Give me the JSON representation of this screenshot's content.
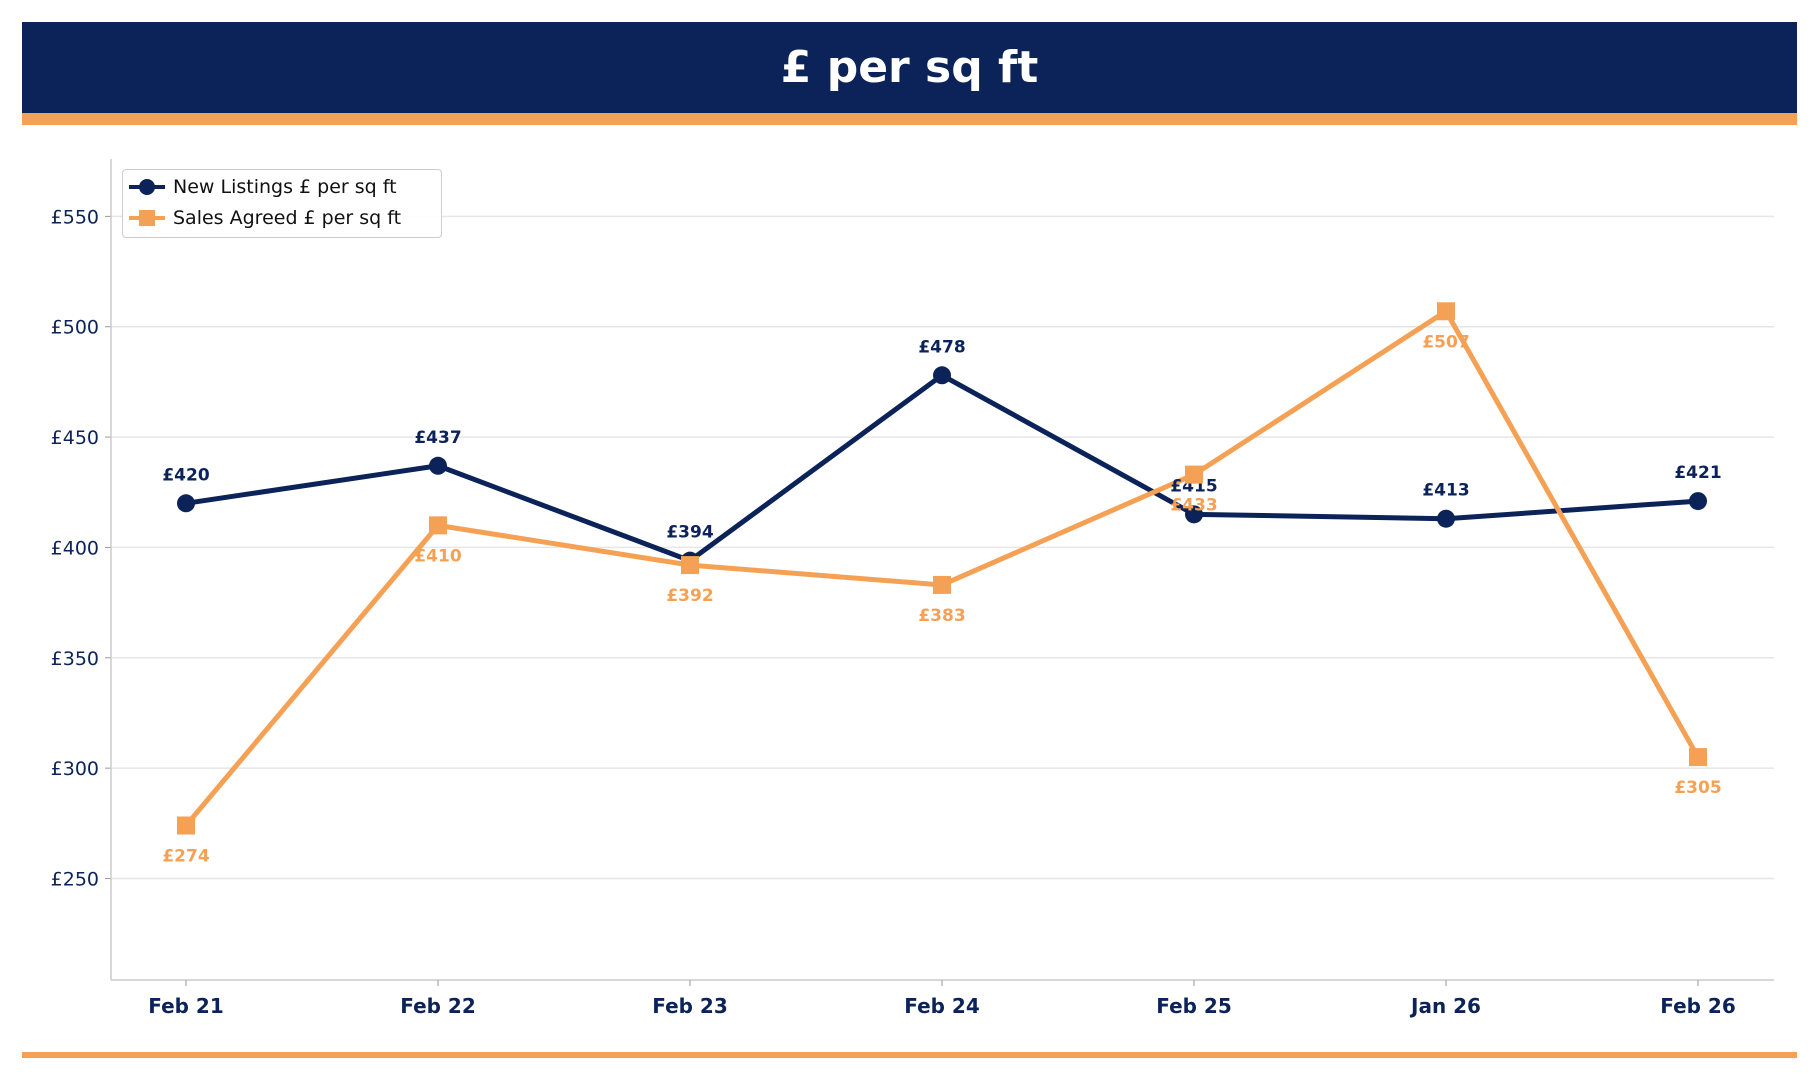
{
  "header": {
    "title": "£ per sq ft"
  },
  "colors": {
    "navy": "#0b2359",
    "orange": "#f5a155"
  },
  "chart_data": {
    "type": "line",
    "title": "£ per sq ft",
    "xlabel": "",
    "ylabel": "",
    "categories": [
      "Feb 21",
      "Feb 22",
      "Feb 23",
      "Feb 24",
      "Feb 25",
      "Jan 26",
      "Feb 26"
    ],
    "ylim": [
      204,
      576
    ],
    "yticks": [
      250,
      300,
      350,
      400,
      450,
      500,
      550
    ],
    "ytick_labels": [
      "£250",
      "£300",
      "£350",
      "£400",
      "£450",
      "£500",
      "£550"
    ],
    "grid": "horizontal",
    "legend_position": "top-left",
    "series": [
      {
        "name": "New Listings £ per sq ft",
        "marker": "circle",
        "color": "#0b2359",
        "values": [
          420,
          437,
          394,
          478,
          415,
          413,
          421
        ],
        "labels": [
          "£420",
          "£437",
          "£394",
          "£478",
          "£415",
          "£413",
          "£421"
        ]
      },
      {
        "name": "Sales Agreed £ per sq ft",
        "marker": "square",
        "color": "#f5a155",
        "values": [
          274,
          410,
          392,
          383,
          433,
          507,
          305
        ],
        "labels": [
          "£274",
          "£410",
          "£392",
          "£383",
          "£433",
          "£507",
          "£305"
        ]
      }
    ]
  }
}
